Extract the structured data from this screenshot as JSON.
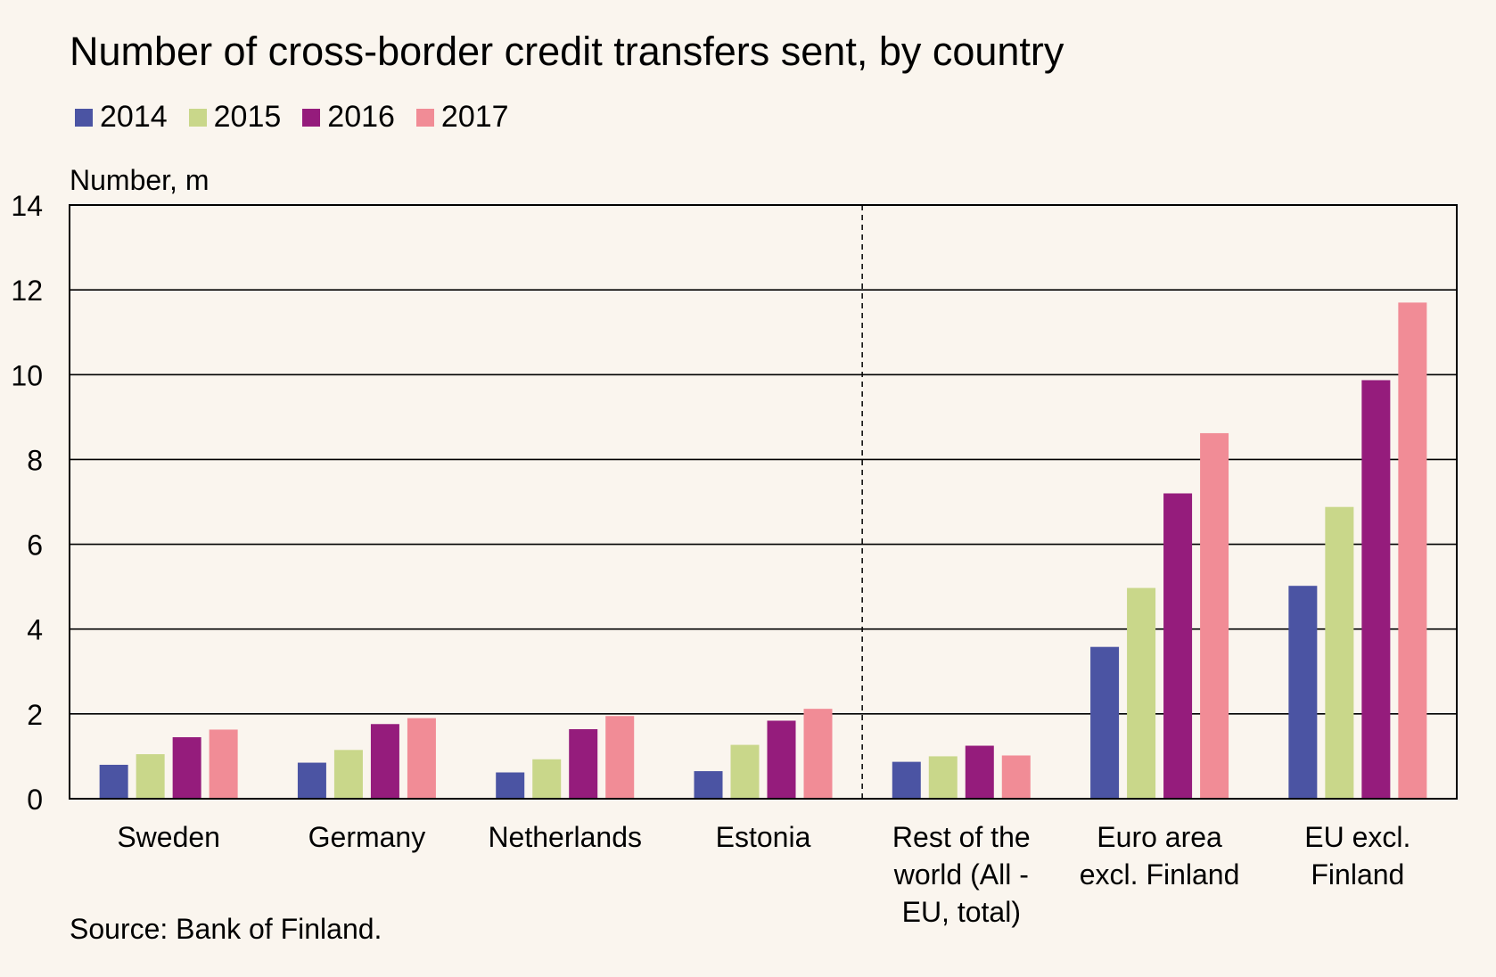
{
  "chart_data": {
    "type": "bar",
    "title": "Number of cross-border credit transfers sent, by country",
    "ylabel": "Number, m",
    "xlabel": "",
    "ylim": [
      0,
      14
    ],
    "yticks": [
      "0",
      "2",
      "4",
      "6",
      "8",
      "10",
      "12",
      "14"
    ],
    "grid": true,
    "legend_position": "top-left",
    "categories": [
      "Sweden",
      "Germany",
      "Netherlands",
      "Estonia",
      "Rest of the world (All - EU, total)",
      "Euro area excl. Finland",
      "EU excl. Finland"
    ],
    "category_label_lines": [
      [
        "Sweden"
      ],
      [
        "Germany"
      ],
      [
        "Netherlands"
      ],
      [
        "Estonia"
      ],
      [
        "Rest of the",
        "world (All -",
        "EU, total)"
      ],
      [
        "Euro area",
        "excl. Finland"
      ],
      [
        "EU excl.",
        "Finland"
      ]
    ],
    "series": [
      {
        "name": "2014",
        "color": "#4b54a3",
        "values": [
          0.8,
          0.85,
          0.62,
          0.65,
          0.87,
          3.58,
          5.02
        ]
      },
      {
        "name": "2015",
        "color": "#c9d78a",
        "values": [
          1.05,
          1.15,
          0.93,
          1.27,
          1.0,
          4.97,
          6.88
        ]
      },
      {
        "name": "2016",
        "color": "#951c7c",
        "values": [
          1.45,
          1.76,
          1.64,
          1.84,
          1.25,
          7.2,
          9.87
        ]
      },
      {
        "name": "2017",
        "color": "#f18c96",
        "values": [
          1.63,
          1.9,
          1.95,
          2.12,
          1.02,
          8.62,
          11.7
        ]
      }
    ],
    "separator_after_category": 3,
    "source": "Source: Bank of Finland."
  }
}
